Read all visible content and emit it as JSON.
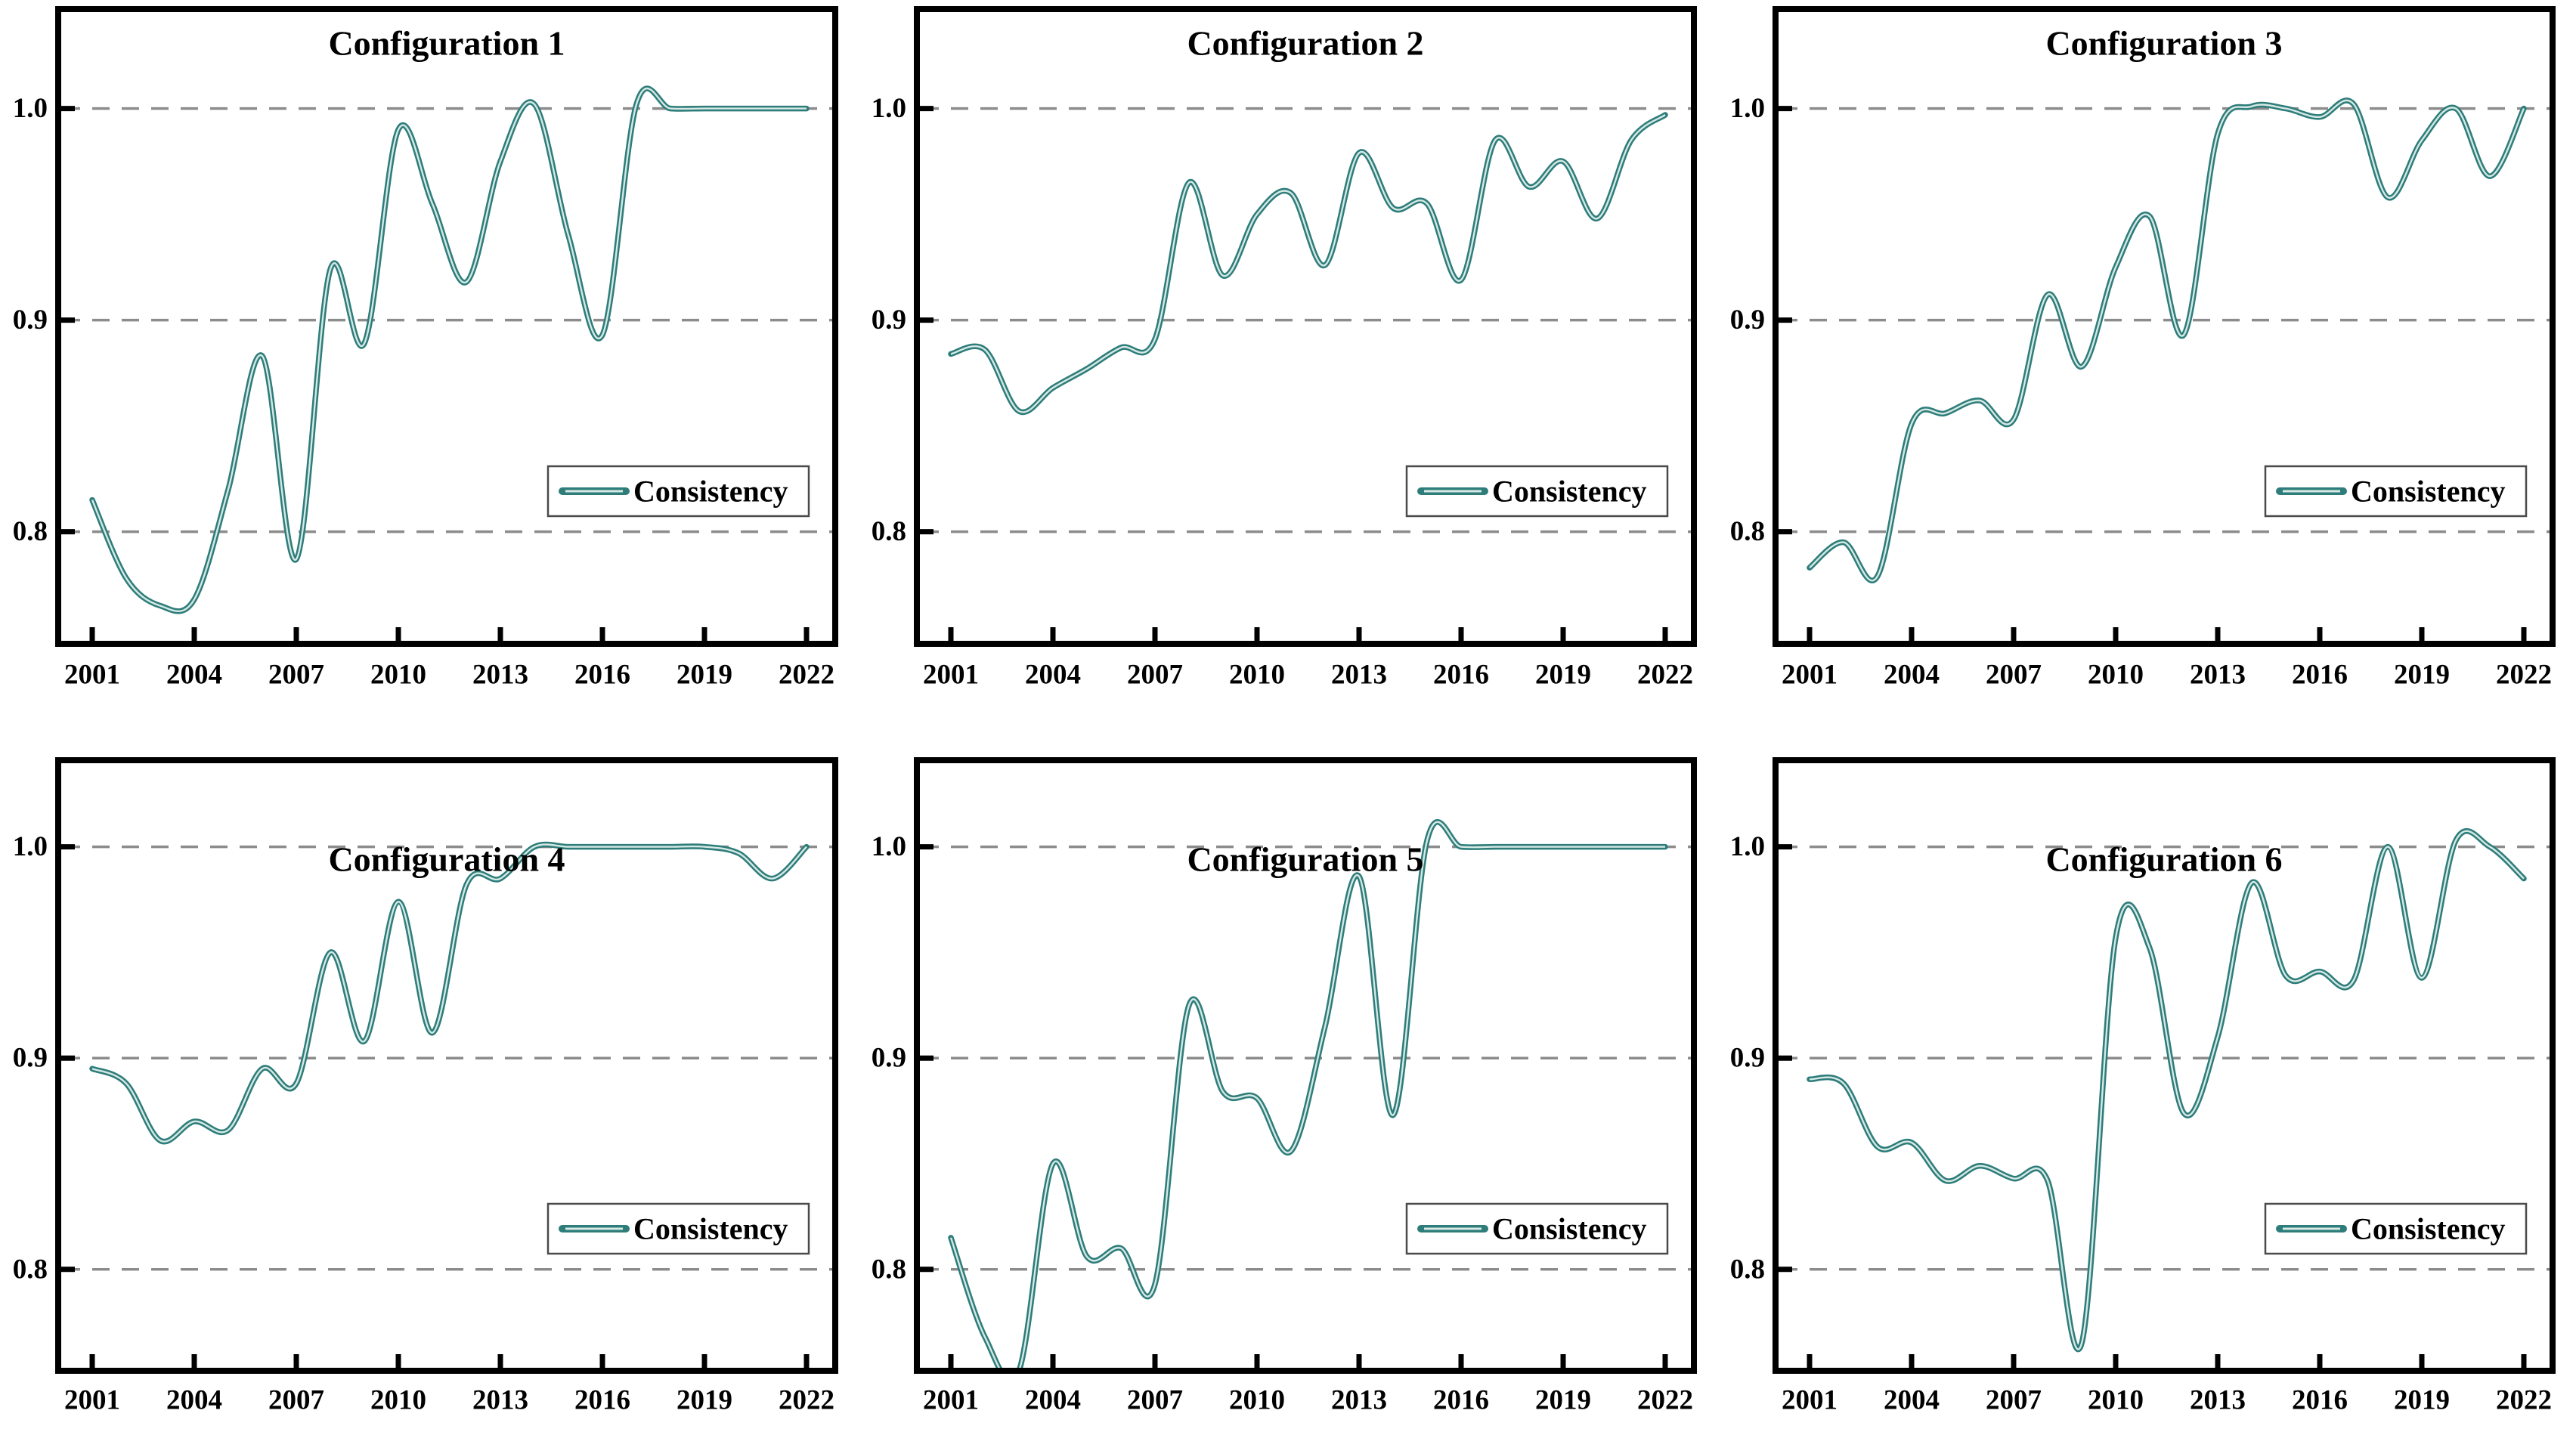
{
  "page": {
    "background": "#ffffff",
    "grid_rows": 2,
    "grid_cols": 3
  },
  "style": {
    "line_color": "#2e7d7b",
    "line_core_color": "#d6e9e4",
    "grid_color": "#8c8c8c",
    "axis_color": "#000000",
    "text_color": "#000000",
    "legend_border_color": "#4a4a4a",
    "legend_background": "#ffffff"
  },
  "axis": {
    "x_tick_labels": [
      "2001",
      "2004",
      "2007",
      "2010",
      "2013",
      "2016",
      "2019",
      "2022"
    ],
    "x_tick_years": [
      2001,
      2004,
      2007,
      2010,
      2013,
      2016,
      2019,
      2022
    ],
    "y_tick_labels": [
      "1.0",
      "0.9",
      "0.8"
    ],
    "y_tick_values": [
      1.0,
      0.9,
      0.8
    ]
  },
  "chart_data": [
    {
      "type": "line",
      "title": "Configuration 1",
      "legend": "Consistency",
      "grid": "dashed-horizontal",
      "legend_position": "lower-right",
      "x": [
        2001,
        2002,
        2003,
        2004,
        2005,
        2006,
        2007,
        2008,
        2009,
        2010,
        2011,
        2012,
        2013,
        2014,
        2015,
        2016,
        2017,
        2018,
        2019,
        2020,
        2021,
        2022
      ],
      "series": [
        {
          "name": "Consistency",
          "values": [
            0.815,
            0.778,
            0.765,
            0.768,
            0.82,
            0.883,
            0.787,
            0.924,
            0.889,
            0.99,
            0.955,
            0.918,
            0.975,
            1.002,
            0.94,
            0.893,
            1.002,
            1.0,
            1.0,
            1.0,
            1.0,
            1.0
          ]
        }
      ],
      "ylim": [
        0.747,
        1.047
      ],
      "y_ticks": [
        0.8,
        0.9,
        1.0
      ]
    },
    {
      "type": "line",
      "title": "Configuration 2",
      "legend": "Consistency",
      "grid": "dashed-horizontal",
      "legend_position": "lower-right",
      "x": [
        2001,
        2002,
        2003,
        2004,
        2005,
        2006,
        2007,
        2008,
        2009,
        2010,
        2011,
        2012,
        2013,
        2014,
        2015,
        2016,
        2017,
        2018,
        2019,
        2020,
        2021,
        2022
      ],
      "series": [
        {
          "name": "Consistency",
          "values": [
            0.884,
            0.886,
            0.857,
            0.868,
            0.877,
            0.887,
            0.891,
            0.965,
            0.921,
            0.95,
            0.96,
            0.926,
            0.979,
            0.953,
            0.955,
            0.919,
            0.985,
            0.963,
            0.975,
            0.948,
            0.985,
            0.997
          ]
        }
      ],
      "ylim": [
        0.747,
        1.047
      ],
      "y_ticks": [
        0.8,
        0.9,
        1.0
      ]
    },
    {
      "type": "line",
      "title": "Configuration 3",
      "legend": "Consistency",
      "grid": "dashed-horizontal",
      "legend_position": "lower-right",
      "x": [
        2001,
        2002,
        2003,
        2004,
        2005,
        2006,
        2007,
        2008,
        2009,
        2010,
        2011,
        2012,
        2013,
        2014,
        2015,
        2016,
        2017,
        2018,
        2019,
        2020,
        2021,
        2022
      ],
      "series": [
        {
          "name": "Consistency",
          "values": [
            0.783,
            0.795,
            0.779,
            0.851,
            0.856,
            0.862,
            0.853,
            0.912,
            0.878,
            0.925,
            0.949,
            0.893,
            0.988,
            1.001,
            1.0,
            0.996,
            1.002,
            0.958,
            0.985,
            1.0,
            0.968,
            1.0
          ]
        }
      ],
      "ylim": [
        0.747,
        1.047
      ],
      "y_ticks": [
        0.8,
        0.9,
        1.0
      ]
    },
    {
      "type": "line",
      "title": "Configuration 4",
      "legend": "Consistency",
      "grid": "dashed-horizontal",
      "legend_position": "lower-right",
      "x": [
        2001,
        2002,
        2003,
        2004,
        2005,
        2006,
        2007,
        2008,
        2009,
        2010,
        2011,
        2012,
        2013,
        2014,
        2015,
        2016,
        2017,
        2018,
        2019,
        2020,
        2021,
        2022
      ],
      "series": [
        {
          "name": "Consistency",
          "values": [
            0.895,
            0.888,
            0.861,
            0.87,
            0.866,
            0.895,
            0.888,
            0.95,
            0.908,
            0.974,
            0.912,
            0.982,
            0.985,
            1.0,
            1.0,
            1.0,
            1.0,
            1.0,
            1.0,
            0.997,
            0.985,
            1.0
          ]
        }
      ],
      "ylim": [
        0.752,
        1.041
      ],
      "y_ticks": [
        0.8,
        0.9,
        1.0
      ]
    },
    {
      "type": "line",
      "title": "Configuration 5",
      "legend": "Consistency",
      "grid": "dashed-horizontal",
      "legend_position": "lower-right",
      "x": [
        2001,
        2002,
        2003,
        2004,
        2005,
        2006,
        2007,
        2008,
        2009,
        2010,
        2011,
        2012,
        2013,
        2014,
        2015,
        2016,
        2017,
        2018,
        2019,
        2020,
        2021,
        2022
      ],
      "series": [
        {
          "name": "Consistency",
          "values": [
            0.815,
            0.768,
            0.752,
            0.85,
            0.806,
            0.81,
            0.793,
            0.925,
            0.884,
            0.881,
            0.856,
            0.915,
            0.986,
            0.873,
            1.003,
            1.0,
            1.0,
            1.0,
            1.0,
            1.0,
            1.0,
            1.0
          ]
        }
      ],
      "ylim": [
        0.752,
        1.041
      ],
      "y_ticks": [
        0.8,
        0.9,
        1.0
      ]
    },
    {
      "type": "line",
      "title": "Configuration 6",
      "legend": "Consistency",
      "grid": "dashed-horizontal",
      "legend_position": "lower-right",
      "x": [
        2001,
        2002,
        2003,
        2004,
        2005,
        2006,
        2007,
        2008,
        2009,
        2010,
        2011,
        2012,
        2013,
        2014,
        2015,
        2016,
        2017,
        2018,
        2019,
        2020,
        2021,
        2022
      ],
      "series": [
        {
          "name": "Consistency",
          "values": [
            0.89,
            0.888,
            0.858,
            0.86,
            0.842,
            0.849,
            0.843,
            0.842,
            0.765,
            0.957,
            0.952,
            0.874,
            0.91,
            0.983,
            0.939,
            0.941,
            0.937,
            1.0,
            0.938,
            1.003,
            1.0,
            0.985
          ]
        }
      ],
      "ylim": [
        0.752,
        1.041
      ],
      "y_ticks": [
        0.8,
        0.9,
        1.0
      ]
    }
  ]
}
